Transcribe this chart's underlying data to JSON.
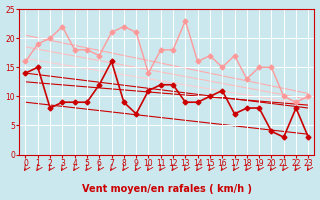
{
  "background_color": "#cbe8ef",
  "grid_color": "#ffffff",
  "xlabel": "Vent moyen/en rafales ( km/h )",
  "xlabel_color": "#cc0000",
  "xlabel_fontsize": 7,
  "tick_color": "#cc0000",
  "tick_fontsize": 5.5,
  "xlim": [
    -0.5,
    23.5
  ],
  "ylim": [
    0,
    25
  ],
  "yticks": [
    0,
    5,
    10,
    15,
    20,
    25
  ],
  "xticks": [
    0,
    1,
    2,
    3,
    4,
    5,
    6,
    7,
    8,
    9,
    10,
    11,
    12,
    13,
    14,
    15,
    16,
    17,
    18,
    19,
    20,
    21,
    22,
    23
  ],
  "rafales_x": [
    0,
    1,
    2,
    3,
    4,
    5,
    6,
    7,
    8,
    9,
    10,
    11,
    12,
    13,
    14,
    15,
    16,
    17,
    18,
    19,
    20,
    21,
    22,
    23
  ],
  "rafales_y": [
    16,
    19,
    20,
    22,
    18,
    18,
    17,
    21,
    22,
    21,
    14,
    18,
    18,
    23,
    16,
    17,
    15,
    17,
    13,
    15,
    15,
    10,
    9,
    10
  ],
  "rafales_color": "#ff9999",
  "rafales_lw": 1.0,
  "rafales_marker": "D",
  "rafales_ms": 2.5,
  "trend1_x": [
    0,
    23
  ],
  "trend1_y": [
    20.5,
    10.5
  ],
  "trend1_color": "#ffaaaa",
  "trend1_lw": 0.8,
  "trend2_x": [
    0,
    23
  ],
  "trend2_y": [
    18.5,
    9.5
  ],
  "trend2_color": "#ffbbbb",
  "trend2_lw": 0.8,
  "trend3_x": [
    0,
    23
  ],
  "trend3_y": [
    16.5,
    8.5
  ],
  "trend3_color": "#ffcccc",
  "trend3_lw": 0.8,
  "moyen_x": [
    0,
    1,
    2,
    3,
    4,
    5,
    6,
    7,
    8,
    9,
    10,
    11,
    12,
    13,
    14,
    15,
    16,
    17,
    18,
    19,
    20,
    21,
    22,
    23
  ],
  "moyen_y": [
    14,
    15,
    8,
    9,
    9,
    9,
    12,
    16,
    9,
    7,
    11,
    12,
    12,
    9,
    9,
    10,
    11,
    7,
    8,
    8,
    4,
    3,
    8,
    3
  ],
  "moyen_color": "#cc0000",
  "moyen_lw": 1.2,
  "moyen_marker": "D",
  "moyen_ms": 2.5,
  "trend4_x": [
    0,
    23
  ],
  "trend4_y": [
    14.0,
    8.0
  ],
  "trend4_color": "#cc0000",
  "trend4_lw": 0.8,
  "trend5_x": [
    0,
    23
  ],
  "trend5_y": [
    12.5,
    8.5
  ],
  "trend5_color": "#cc0000",
  "trend5_lw": 0.8,
  "trend6_x": [
    0,
    23
  ],
  "trend6_y": [
    9.0,
    3.5
  ],
  "trend6_color": "#cc0000",
  "trend6_lw": 0.8,
  "arrow_color": "#cc0000",
  "spine_color": "#cc0000"
}
